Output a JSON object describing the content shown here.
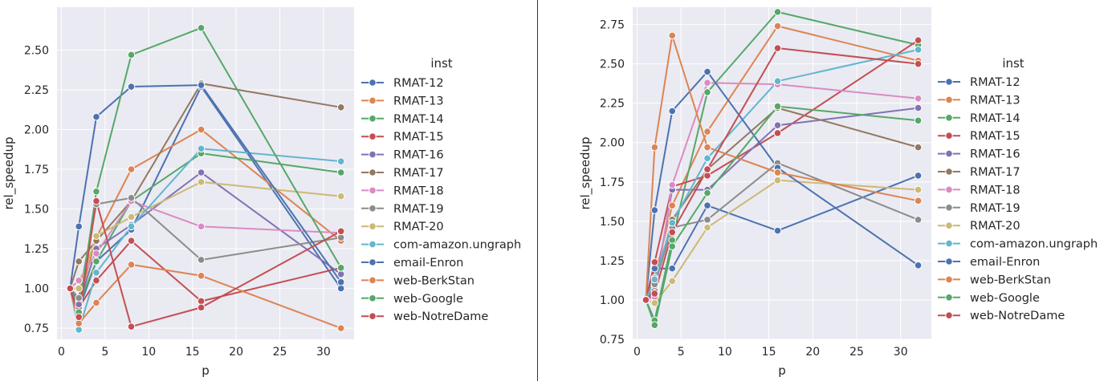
{
  "colors": {
    "plot_bg": "#eaeaf2",
    "grid": "#ffffff",
    "palette": [
      "#4c72b0",
      "#dd8452",
      "#55a868",
      "#c44e52",
      "#8172b3",
      "#937860",
      "#da8bc3",
      "#8c8c8c",
      "#ccb974",
      "#64b5cd"
    ]
  },
  "chart_data": [
    {
      "type": "line",
      "xlabel": "p",
      "ylabel": "rel_speedup",
      "xlim": [
        -0.5,
        33.5
      ],
      "ylim": [
        0.68,
        2.77
      ],
      "xticks": [
        0,
        5,
        10,
        15,
        20,
        25,
        30
      ],
      "yticks": [
        0.75,
        1.0,
        1.25,
        1.5,
        1.75,
        2.0,
        2.25,
        2.5
      ],
      "ytick_labels": [
        "0.75",
        "1.00",
        "1.25",
        "1.50",
        "1.75",
        "2.00",
        "2.25",
        "2.50"
      ],
      "grid": true,
      "legend": {
        "title": "inst",
        "placement": "right"
      },
      "x": [
        1,
        2,
        4,
        8,
        16,
        32
      ],
      "series": [
        {
          "name": "RMAT-12",
          "values": [
            1.0,
            0.87,
            1.17,
            1.37,
            2.27,
            1.0
          ]
        },
        {
          "name": "RMAT-13",
          "values": [
            1.0,
            0.92,
            1.32,
            1.75,
            2.0,
            1.3
          ]
        },
        {
          "name": "RMAT-14",
          "values": [
            1.0,
            0.9,
            1.17,
            1.55,
            1.85,
            1.73
          ]
        },
        {
          "name": "RMAT-15",
          "values": [
            1.0,
            0.88,
            1.05,
            1.3,
            0.92,
            1.13
          ]
        },
        {
          "name": "RMAT-16",
          "values": [
            1.0,
            0.9,
            1.25,
            1.4,
            1.73,
            1.09
          ]
        },
        {
          "name": "RMAT-17",
          "values": [
            1.0,
            1.17,
            1.3,
            1.55,
            2.29,
            2.14
          ]
        },
        {
          "name": "RMAT-18",
          "values": [
            1.0,
            1.05,
            1.22,
            1.55,
            1.39,
            1.35
          ]
        },
        {
          "name": "RMAT-19",
          "values": [
            1.0,
            0.94,
            1.53,
            1.57,
            1.18,
            1.32
          ]
        },
        {
          "name": "RMAT-20",
          "values": [
            1.0,
            1.0,
            1.33,
            1.45,
            1.67,
            1.58
          ]
        },
        {
          "name": "com-amazon.ungraph",
          "values": [
            1.0,
            0.74,
            1.1,
            1.39,
            1.88,
            1.8
          ]
        },
        {
          "name": "email-Enron",
          "values": [
            1.0,
            1.39,
            2.08,
            2.27,
            2.28,
            1.04
          ]
        },
        {
          "name": "web-BerkStan",
          "values": [
            1.0,
            0.78,
            0.91,
            1.15,
            1.08,
            0.75
          ]
        },
        {
          "name": "web-Google",
          "values": [
            1.0,
            0.85,
            1.61,
            2.47,
            2.64,
            1.13
          ]
        },
        {
          "name": "web-NotreDame",
          "values": [
            1.0,
            0.82,
            1.55,
            0.76,
            0.88,
            1.36
          ]
        }
      ]
    },
    {
      "type": "line",
      "xlabel": "p",
      "ylabel": "rel_speedup",
      "xlim": [
        -0.5,
        33.5
      ],
      "ylim": [
        0.75,
        2.86
      ],
      "xticks": [
        0,
        5,
        10,
        15,
        20,
        25,
        30
      ],
      "yticks": [
        0.75,
        1.0,
        1.25,
        1.5,
        1.75,
        2.0,
        2.25,
        2.5,
        2.75
      ],
      "ytick_labels": [
        "0.75",
        "1.00",
        "1.25",
        "1.50",
        "1.75",
        "2.00",
        "2.25",
        "2.50",
        "2.75"
      ],
      "grid": true,
      "legend": {
        "title": "inst",
        "placement": "right"
      },
      "x": [
        1,
        2,
        4,
        8,
        16,
        32
      ],
      "series": [
        {
          "name": "RMAT-12",
          "values": [
            1.0,
            1.2,
            1.2,
            1.6,
            1.44,
            1.79
          ]
        },
        {
          "name": "RMAT-13",
          "values": [
            1.0,
            1.14,
            1.6,
            2.07,
            2.74,
            2.52
          ]
        },
        {
          "name": "RMAT-14",
          "values": [
            1.0,
            0.87,
            1.38,
            2.32,
            2.83,
            2.62
          ]
        },
        {
          "name": "RMAT-15",
          "values": [
            1.0,
            1.24,
            1.72,
            1.79,
            2.06,
            2.65
          ]
        },
        {
          "name": "RMAT-16",
          "values": [
            1.0,
            1.06,
            1.7,
            1.7,
            2.11,
            2.22
          ]
        },
        {
          "name": "RMAT-17",
          "values": [
            1.0,
            1.09,
            1.51,
            1.83,
            2.22,
            1.97
          ]
        },
        {
          "name": "RMAT-18",
          "values": [
            1.0,
            1.02,
            1.73,
            2.38,
            2.37,
            2.28
          ]
        },
        {
          "name": "RMAT-19",
          "values": [
            1.0,
            1.1,
            1.46,
            1.51,
            1.87,
            1.51
          ]
        },
        {
          "name": "RMAT-20",
          "values": [
            1.0,
            0.98,
            1.12,
            1.46,
            1.76,
            1.7
          ]
        },
        {
          "name": "com-amazon.ungraph",
          "values": [
            1.0,
            1.13,
            1.49,
            1.9,
            2.39,
            2.59
          ]
        },
        {
          "name": "email-Enron",
          "values": [
            1.0,
            1.57,
            2.2,
            2.45,
            1.84,
            1.22
          ]
        },
        {
          "name": "web-BerkStan",
          "values": [
            1.0,
            1.97,
            2.68,
            1.97,
            1.81,
            1.63
          ]
        },
        {
          "name": "web-Google",
          "values": [
            1.0,
            0.84,
            1.34,
            1.68,
            2.23,
            2.14
          ]
        },
        {
          "name": "web-NotreDame",
          "values": [
            1.0,
            1.04,
            1.43,
            1.83,
            2.6,
            2.5
          ]
        }
      ]
    }
  ]
}
